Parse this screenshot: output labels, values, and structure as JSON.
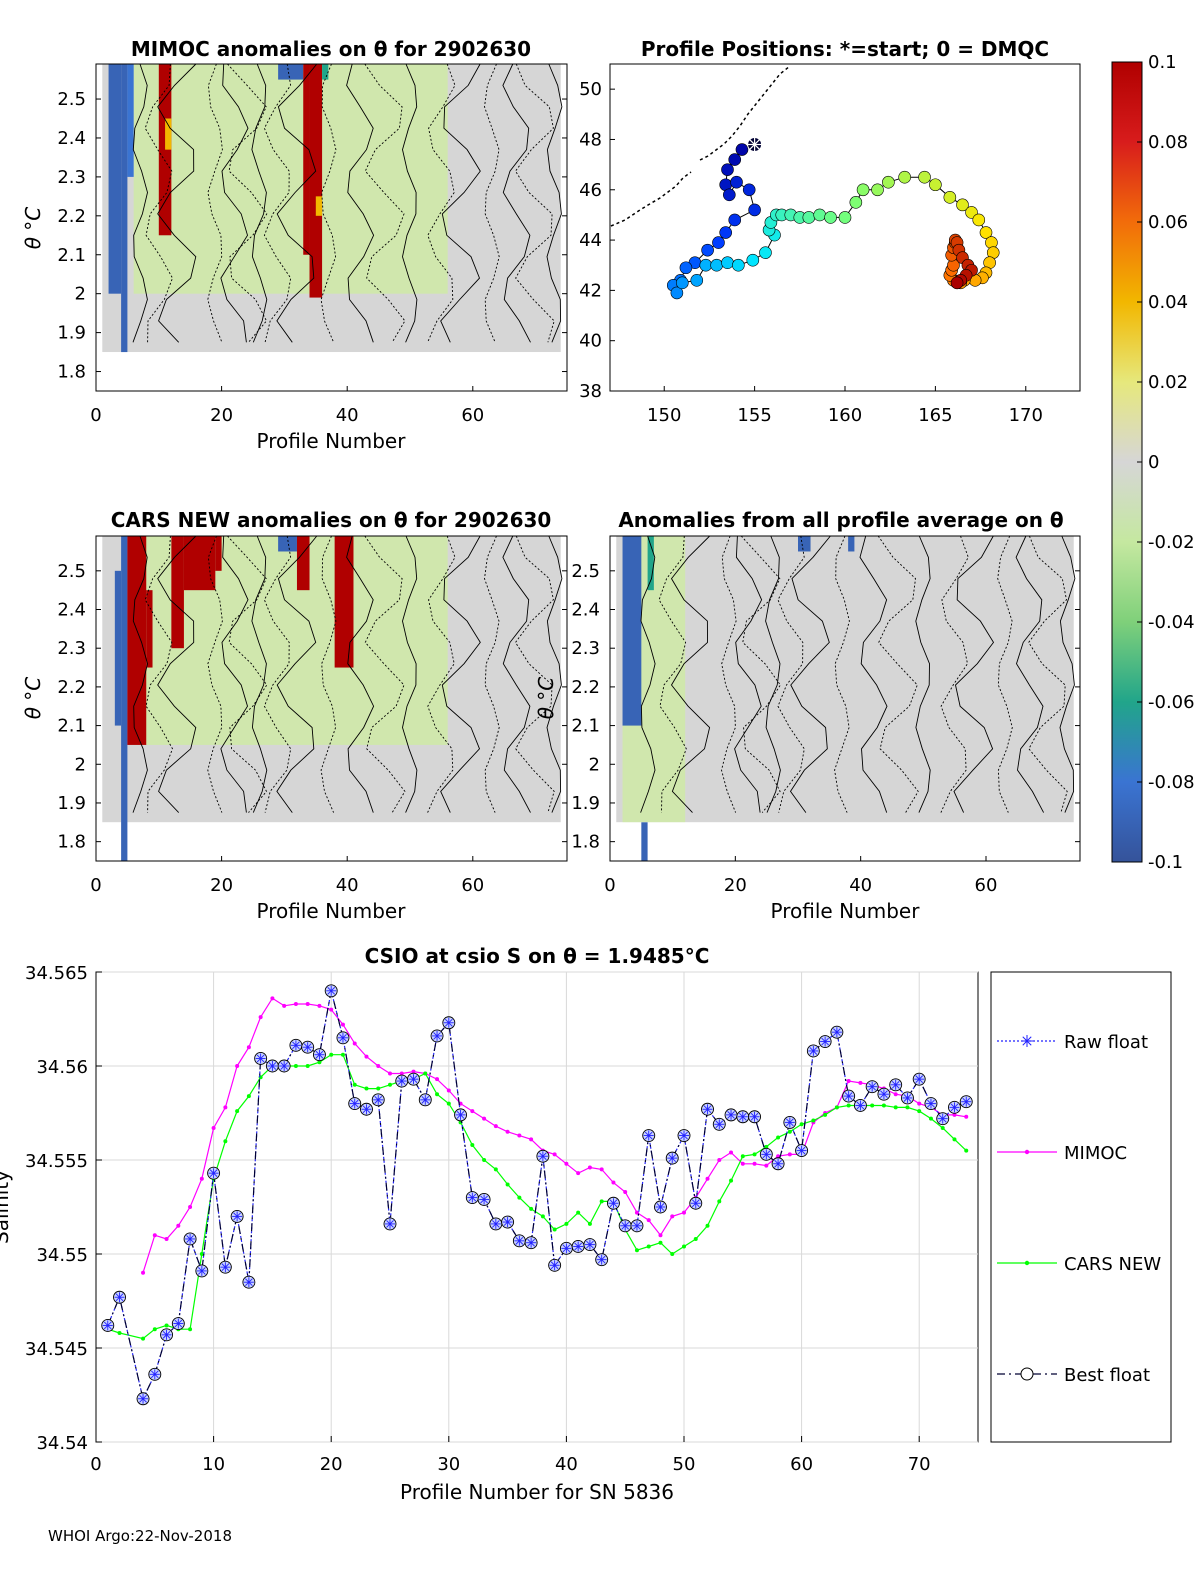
{
  "footer": "WHOI Argo:22-Nov-2018",
  "colors": {
    "mimoc": "#ff00ff",
    "cars": "#00ff00",
    "best": "#000033",
    "raw": "#2222ff",
    "grid": "#d9d9d9",
    "land": "#000000"
  },
  "chart_data": [
    {
      "id": "mimoc_anom",
      "type": "heatmap",
      "title": "MIMOC anomalies on θ  for 2902630",
      "xlabel": "Profile Number",
      "ylabel": "θ °C",
      "xlim": [
        0,
        75
      ],
      "ylim": [
        1.75,
        2.59
      ],
      "xticks": [
        "0",
        "20",
        "40",
        "60"
      ],
      "xtick_values": [
        0,
        20,
        40,
        60
      ],
      "yticks": [
        "1.8",
        "1.9",
        "2",
        "2.1",
        "2.2",
        "2.3",
        "2.4",
        "2.5"
      ],
      "ytick_values": [
        1.8,
        1.9,
        2.0,
        2.1,
        2.2,
        2.3,
        2.4,
        2.5
      ],
      "columns": [
        {
          "x0": 2,
          "x1": 4,
          "y0": 2.0,
          "y1": 2.59,
          "v": -0.09
        },
        {
          "x0": 4,
          "x1": 5,
          "y0": 1.85,
          "y1": 2.59,
          "v": -0.09
        },
        {
          "x0": 5,
          "x1": 6,
          "y0": 2.3,
          "y1": 2.59,
          "v": -0.08
        },
        {
          "x0": 10,
          "x1": 12,
          "y0": 2.15,
          "y1": 2.59,
          "v": 0.1
        },
        {
          "x0": 11,
          "x1": 12,
          "y0": 2.37,
          "y1": 2.45,
          "v": 0.04
        },
        {
          "x0": 29,
          "x1": 33,
          "y0": 2.55,
          "y1": 2.59,
          "v": -0.09
        },
        {
          "x0": 33,
          "x1": 34,
          "y0": 2.1,
          "y1": 2.59,
          "v": 0.1
        },
        {
          "x0": 34,
          "x1": 36,
          "y0": 1.99,
          "y1": 2.59,
          "v": 0.1
        },
        {
          "x0": 35,
          "x1": 36,
          "y0": 2.2,
          "y1": 2.25,
          "v": 0.04
        },
        {
          "x0": 36,
          "x1": 37,
          "y0": 2.55,
          "y1": 2.59,
          "v": -0.06
        }
      ],
      "green_region": [
        6,
        56,
        2.0,
        2.59
      ],
      "contour_x": [
        7,
        10,
        13,
        19,
        22,
        24,
        26,
        29,
        32,
        37,
        42,
        46,
        50,
        55,
        58,
        63,
        67,
        70,
        73
      ],
      "contour_y_base": 2.3
    },
    {
      "id": "positions",
      "type": "scatter",
      "title": "Profile Positions: *=start; 0 = DMQC",
      "xlim": [
        147,
        173
      ],
      "ylim": [
        38,
        51
      ],
      "xticks": [
        "150",
        "155",
        "160",
        "165",
        "170"
      ],
      "xtick_values": [
        150,
        155,
        160,
        165,
        170
      ],
      "yticks": [
        "38",
        "40",
        "42",
        "44",
        "46",
        "48",
        "50"
      ],
      "ytick_values": [
        38,
        40,
        42,
        44,
        46,
        48,
        50
      ],
      "lon": [
        155.0,
        154.3,
        153.9,
        153.5,
        153.4,
        153.6,
        154.0,
        154.7,
        155.0,
        153.9,
        153.4,
        153.0,
        152.4,
        151.7,
        151.2,
        150.9,
        150.5,
        150.7,
        151.0,
        151.8,
        152.3,
        152.9,
        153.5,
        154.1,
        154.9,
        155.6,
        156.1,
        155.8,
        155.9,
        156.2,
        156.5,
        157.0,
        157.5,
        158.0,
        158.6,
        159.2,
        160.0,
        160.6,
        161.0,
        161.8,
        162.4,
        163.3,
        164.4,
        165.0,
        165.8,
        166.5,
        167.0,
        167.4,
        167.8,
        168.1,
        168.2,
        168.0,
        167.8,
        167.6,
        167.2,
        166.6,
        166.4,
        166.2,
        166.0,
        165.8,
        165.9,
        166.0,
        165.9,
        166.0,
        166.1,
        166.1,
        166.2,
        166.3,
        166.5,
        166.8,
        167.0,
        166.7,
        166.4,
        166.2
      ],
      "lat": [
        47.8,
        47.6,
        47.2,
        46.8,
        46.2,
        45.8,
        46.3,
        46.0,
        45.2,
        44.8,
        44.3,
        43.9,
        43.6,
        43.1,
        42.9,
        42.4,
        42.2,
        41.9,
        42.3,
        42.4,
        43.0,
        43.0,
        43.1,
        43.0,
        43.2,
        43.5,
        44.2,
        44.4,
        44.7,
        45.0,
        45.0,
        45.0,
        44.9,
        44.9,
        45.0,
        44.9,
        44.9,
        45.5,
        46.0,
        46.0,
        46.3,
        46.5,
        46.5,
        46.2,
        45.7,
        45.4,
        45.1,
        44.8,
        44.3,
        43.9,
        43.5,
        43.1,
        42.7,
        42.5,
        42.4,
        42.4,
        42.3,
        42.3,
        42.4,
        42.6,
        42.8,
        43.0,
        43.4,
        43.7,
        43.9,
        44.0,
        43.9,
        43.6,
        43.3,
        43.0,
        42.8,
        42.6,
        42.4,
        42.3
      ],
      "start_marker": "*"
    },
    {
      "id": "cars_anom",
      "type": "heatmap",
      "title": "CARS NEW anomalies on θ for 2902630",
      "xlabel": "Profile Number",
      "ylabel": "θ °C",
      "xlim": [
        0,
        75
      ],
      "ylim": [
        1.75,
        2.59
      ],
      "xticks": [
        "0",
        "20",
        "40",
        "60"
      ],
      "xtick_values": [
        0,
        20,
        40,
        60
      ],
      "yticks": [
        "1.8",
        "1.9",
        "2",
        "2.1",
        "2.2",
        "2.3",
        "2.4",
        "2.5"
      ],
      "ytick_values": [
        1.8,
        1.9,
        2.0,
        2.1,
        2.2,
        2.3,
        2.4,
        2.5
      ],
      "columns": [
        {
          "x0": 3,
          "x1": 4,
          "y0": 2.1,
          "y1": 2.5,
          "v": -0.09
        },
        {
          "x0": 4,
          "x1": 5,
          "y0": 1.75,
          "y1": 2.59,
          "v": -0.09
        },
        {
          "x0": 5,
          "x1": 8,
          "y0": 2.05,
          "y1": 2.59,
          "v": 0.1
        },
        {
          "x0": 8,
          "x1": 9,
          "y0": 2.25,
          "y1": 2.45,
          "v": 0.1
        },
        {
          "x0": 12,
          "x1": 14,
          "y0": 2.3,
          "y1": 2.59,
          "v": 0.1
        },
        {
          "x0": 14,
          "x1": 19,
          "y0": 2.45,
          "y1": 2.59,
          "v": 0.1
        },
        {
          "x0": 19,
          "x1": 20,
          "y0": 2.5,
          "y1": 2.59,
          "v": 0.1
        },
        {
          "x0": 29,
          "x1": 32,
          "y0": 2.55,
          "y1": 2.59,
          "v": -0.09
        },
        {
          "x0": 32,
          "x1": 34,
          "y0": 2.45,
          "y1": 2.59,
          "v": 0.1
        },
        {
          "x0": 38,
          "x1": 41,
          "y0": 2.25,
          "y1": 2.59,
          "v": 0.1
        }
      ],
      "green_region": [
        6,
        56,
        2.05,
        2.59
      ],
      "contour_x": [
        7,
        10,
        13,
        19,
        22,
        24,
        26,
        29,
        32,
        37,
        42,
        46,
        50,
        55,
        58,
        63,
        67,
        70,
        73
      ],
      "contour_y_base": 2.2
    },
    {
      "id": "avg_anom",
      "type": "heatmap",
      "title": "Anomalies from all profile average on θ",
      "xlabel": "Profile Number",
      "ylabel": "θ °C",
      "xlim": [
        0,
        75
      ],
      "ylim": [
        1.75,
        2.59
      ],
      "xticks": [
        "0",
        "20",
        "40",
        "60"
      ],
      "xtick_values": [
        0,
        20,
        40,
        60
      ],
      "yticks": [
        "1.8",
        "1.9",
        "2",
        "2.1",
        "2.2",
        "2.3",
        "2.4",
        "2.5"
      ],
      "ytick_values": [
        1.8,
        1.9,
        2.0,
        2.1,
        2.2,
        2.3,
        2.4,
        2.5
      ],
      "columns": [
        {
          "x0": 2,
          "x1": 5,
          "y0": 2.1,
          "y1": 2.59,
          "v": -0.09
        },
        {
          "x0": 5,
          "x1": 6,
          "y0": 1.75,
          "y1": 1.85,
          "v": -0.09
        },
        {
          "x0": 6,
          "x1": 7,
          "y0": 2.45,
          "y1": 2.59,
          "v": -0.06
        },
        {
          "x0": 30,
          "x1": 32,
          "y0": 2.55,
          "y1": 2.59,
          "v": -0.09
        },
        {
          "x0": 38,
          "x1": 39,
          "y0": 2.55,
          "y1": 2.59,
          "v": -0.09
        }
      ],
      "green_region": [
        2,
        12,
        1.85,
        2.59
      ],
      "contour_x": [
        6,
        10,
        13,
        19,
        22,
        24,
        26,
        29,
        32,
        37,
        42,
        46,
        50,
        55,
        58,
        63,
        67,
        70,
        73
      ],
      "contour_y_base": 2.3
    },
    {
      "id": "colorbar",
      "type": "heatmap",
      "ticks": [
        "0.1",
        "0.08",
        "0.06",
        "0.04",
        "0.02",
        "0",
        "-0.02",
        "-0.04",
        "-0.06",
        "-0.08",
        "-0.1"
      ],
      "tick_values": [
        0.1,
        0.08,
        0.06,
        0.04,
        0.02,
        0,
        -0.02,
        -0.04,
        -0.06,
        -0.08,
        -0.1
      ],
      "clim": [
        -0.1,
        0.1
      ]
    },
    {
      "id": "salinity",
      "type": "line",
      "title": "CSIO at csio S on θ = 1.9485°C",
      "xlabel": "Profile Number for SN 5836",
      "ylabel": "Salinity",
      "xlim": [
        0,
        75
      ],
      "ylim": [
        34.54,
        34.565
      ],
      "xticks": [
        "0",
        "10",
        "20",
        "30",
        "40",
        "50",
        "60",
        "70"
      ],
      "xtick_values": [
        0,
        10,
        20,
        30,
        40,
        50,
        60,
        70
      ],
      "yticks": [
        "34.54",
        "34.545",
        "34.55",
        "34.555",
        "34.56",
        "34.565"
      ],
      "ytick_values": [
        34.54,
        34.545,
        34.55,
        34.555,
        34.56,
        34.565
      ],
      "x": [
        1,
        2,
        4,
        5,
        6,
        7,
        8,
        9,
        10,
        11,
        12,
        13,
        14,
        15,
        16,
        17,
        18,
        19,
        20,
        21,
        22,
        23,
        24,
        25,
        26,
        27,
        28,
        29,
        30,
        31,
        32,
        33,
        34,
        35,
        36,
        37,
        38,
        39,
        40,
        41,
        42,
        43,
        44,
        45,
        46,
        47,
        48,
        49,
        50,
        51,
        52,
        53,
        54,
        55,
        56,
        57,
        58,
        59,
        60,
        61,
        62,
        63,
        64,
        65,
        66,
        67,
        68,
        69,
        70,
        71,
        72,
        73,
        74
      ],
      "series": [
        {
          "name": "Raw float",
          "values": [
            34.5462,
            34.5477,
            34.5423,
            34.5436,
            34.5457,
            34.5463,
            34.5508,
            34.5491,
            34.5543,
            34.5493,
            34.552,
            34.5485,
            34.5604,
            34.56,
            34.56,
            34.5611,
            34.561,
            34.5606,
            34.564,
            34.5615,
            34.558,
            34.5577,
            34.5582,
            34.5516,
            34.5592,
            34.5593,
            34.5582,
            34.5616,
            34.5623,
            34.5574,
            34.553,
            34.5529,
            34.5516,
            34.5517,
            34.5507,
            34.5506,
            34.5552,
            34.5494,
            34.5503,
            34.5504,
            34.5505,
            34.5497,
            34.5527,
            34.5515,
            34.5515,
            34.5563,
            34.5525,
            34.5551,
            34.5563,
            34.5527,
            34.5577,
            34.5569,
            34.5574,
            34.5573,
            34.5573,
            34.5553,
            34.5548,
            34.557,
            34.5555,
            34.5608,
            34.5613,
            34.5618,
            34.5584,
            34.5579,
            34.5589,
            34.5585,
            34.559,
            34.5583,
            34.5593,
            34.558,
            34.5572,
            34.5578,
            34.5581
          ]
        },
        {
          "name": "MIMOC",
          "values": [
            null,
            null,
            34.549,
            34.551,
            34.5508,
            34.5515,
            34.5525,
            34.554,
            34.5567,
            34.5578,
            34.56,
            34.561,
            34.5626,
            34.5636,
            34.5632,
            34.5633,
            34.5633,
            34.5632,
            34.563,
            34.5622,
            34.5612,
            34.5605,
            34.56,
            34.5596,
            34.5596,
            34.5597,
            34.5596,
            34.5593,
            34.5587,
            34.558,
            34.5576,
            34.5572,
            34.5568,
            34.5565,
            34.5563,
            34.5561,
            34.5555,
            34.5553,
            34.5548,
            34.5543,
            34.5546,
            34.5545,
            34.5538,
            34.5533,
            34.5522,
            34.5518,
            34.551,
            34.552,
            34.5522,
            34.553,
            34.554,
            34.555,
            34.5554,
            34.5548,
            34.5548,
            34.5547,
            34.5552,
            34.5553,
            34.5553,
            34.557,
            34.5575,
            34.5578,
            34.5592,
            34.5591,
            34.559,
            34.5588,
            34.5585,
            34.5584,
            34.558,
            34.5578,
            34.5574,
            34.5574,
            34.5573
          ]
        },
        {
          "name": "CARS NEW",
          "values": [
            34.546,
            34.5458,
            34.5455,
            34.546,
            34.5462,
            34.546,
            34.546,
            34.55,
            34.554,
            34.556,
            34.5576,
            34.5584,
            34.5594,
            34.56,
            34.56,
            34.56,
            34.56,
            34.5602,
            34.5606,
            34.5606,
            34.559,
            34.5588,
            34.5588,
            34.559,
            34.5592,
            34.5593,
            34.5596,
            34.5585,
            34.558,
            34.557,
            34.5558,
            34.555,
            34.5545,
            34.5537,
            34.553,
            34.5524,
            34.552,
            34.5513,
            34.5516,
            34.5522,
            34.5516,
            34.5528,
            34.5528,
            34.5513,
            34.5502,
            34.5504,
            34.5506,
            34.55,
            34.5504,
            34.5508,
            34.5515,
            34.5528,
            34.5539,
            34.5552,
            34.5553,
            34.5557,
            34.5562,
            34.5565,
            34.5569,
            34.5571,
            34.5574,
            34.5578,
            34.5579,
            34.5579,
            34.5579,
            34.5579,
            34.5578,
            34.5578,
            34.5576,
            34.5572,
            34.5567,
            34.5561,
            34.5555
          ]
        },
        {
          "name": "Best float",
          "values": [
            34.5462,
            34.5477,
            34.5423,
            34.5436,
            34.5457,
            34.5463,
            34.5508,
            34.5491,
            34.5543,
            34.5493,
            34.552,
            34.5485,
            34.5604,
            34.56,
            34.56,
            34.5611,
            34.561,
            34.5606,
            34.564,
            34.5615,
            34.558,
            34.5577,
            34.5582,
            34.5516,
            34.5592,
            34.5593,
            34.5582,
            34.5616,
            34.5623,
            34.5574,
            34.553,
            34.5529,
            34.5516,
            34.5517,
            34.5507,
            34.5506,
            34.5552,
            34.5494,
            34.5503,
            34.5504,
            34.5505,
            34.5497,
            34.5527,
            34.5515,
            34.5515,
            34.5563,
            34.5525,
            34.5551,
            34.5563,
            34.5527,
            34.5577,
            34.5569,
            34.5574,
            34.5573,
            34.5573,
            34.5553,
            34.5548,
            34.557,
            34.5555,
            34.5608,
            34.5613,
            34.5618,
            34.5584,
            34.5579,
            34.5589,
            34.5585,
            34.559,
            34.5583,
            34.5593,
            34.558,
            34.5572,
            34.5578,
            34.5581
          ]
        }
      ],
      "legend": [
        "Raw float",
        "MIMOC",
        "CARS NEW",
        "Best float"
      ],
      "legend_position": "right",
      "grid": true
    }
  ]
}
